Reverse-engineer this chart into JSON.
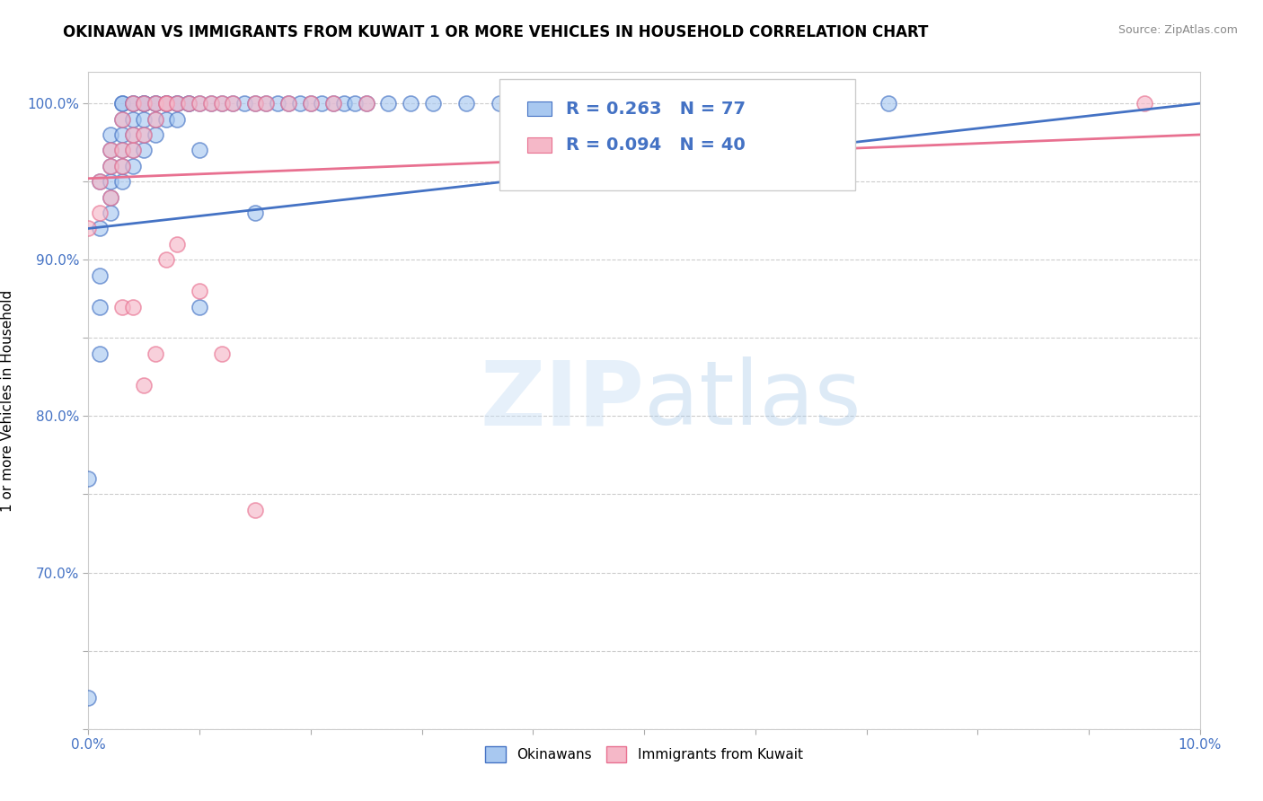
{
  "title": "OKINAWAN VS IMMIGRANTS FROM KUWAIT 1 OR MORE VEHICLES IN HOUSEHOLD CORRELATION CHART",
  "source": "Source: ZipAtlas.com",
  "ylabel": "1 or more Vehicles in Household",
  "xlim": [
    0.0,
    0.1
  ],
  "ylim": [
    0.6,
    1.02
  ],
  "R_blue": 0.263,
  "N_blue": 77,
  "R_pink": 0.094,
  "N_pink": 40,
  "blue_color": "#a8c8f0",
  "pink_color": "#f5b8c8",
  "blue_line_color": "#4472c4",
  "pink_line_color": "#e87090",
  "watermark_color": "#ddeeff",
  "blue_scatter_x": [
    0.0,
    0.0,
    0.001,
    0.001,
    0.001,
    0.001,
    0.001,
    0.002,
    0.002,
    0.002,
    0.002,
    0.002,
    0.002,
    0.003,
    0.003,
    0.003,
    0.003,
    0.003,
    0.003,
    0.003,
    0.004,
    0.004,
    0.004,
    0.004,
    0.004,
    0.004,
    0.005,
    0.005,
    0.005,
    0.005,
    0.005,
    0.005,
    0.006,
    0.006,
    0.006,
    0.006,
    0.007,
    0.007,
    0.007,
    0.007,
    0.008,
    0.008,
    0.008,
    0.009,
    0.009,
    0.01,
    0.01,
    0.01,
    0.011,
    0.012,
    0.013,
    0.014,
    0.015,
    0.015,
    0.016,
    0.017,
    0.018,
    0.019,
    0.02,
    0.021,
    0.022,
    0.023,
    0.024,
    0.025,
    0.027,
    0.029,
    0.031,
    0.034,
    0.037,
    0.04,
    0.043,
    0.047,
    0.05,
    0.055,
    0.06,
    0.066,
    0.072
  ],
  "blue_scatter_y": [
    0.62,
    0.76,
    0.84,
    0.87,
    0.89,
    0.92,
    0.95,
    0.93,
    0.94,
    0.95,
    0.96,
    0.97,
    0.98,
    0.95,
    0.96,
    0.97,
    0.98,
    0.99,
    1.0,
    1.0,
    0.96,
    0.97,
    0.98,
    0.99,
    1.0,
    1.0,
    0.97,
    0.98,
    0.99,
    1.0,
    1.0,
    1.0,
    0.98,
    0.99,
    1.0,
    1.0,
    0.99,
    1.0,
    1.0,
    1.0,
    0.99,
    1.0,
    1.0,
    1.0,
    1.0,
    0.87,
    0.97,
    1.0,
    1.0,
    1.0,
    1.0,
    1.0,
    0.93,
    1.0,
    1.0,
    1.0,
    1.0,
    1.0,
    1.0,
    1.0,
    1.0,
    1.0,
    1.0,
    1.0,
    1.0,
    1.0,
    1.0,
    1.0,
    1.0,
    1.0,
    1.0,
    1.0,
    1.0,
    1.0,
    1.0,
    1.0,
    1.0
  ],
  "pink_scatter_x": [
    0.0,
    0.001,
    0.001,
    0.002,
    0.002,
    0.002,
    0.003,
    0.003,
    0.003,
    0.004,
    0.004,
    0.004,
    0.005,
    0.005,
    0.006,
    0.006,
    0.007,
    0.007,
    0.008,
    0.009,
    0.01,
    0.011,
    0.012,
    0.013,
    0.015,
    0.016,
    0.018,
    0.02,
    0.022,
    0.025,
    0.003,
    0.004,
    0.005,
    0.006,
    0.007,
    0.008,
    0.01,
    0.012,
    0.015,
    0.095
  ],
  "pink_scatter_y": [
    0.92,
    0.93,
    0.95,
    0.94,
    0.96,
    0.97,
    0.96,
    0.97,
    0.99,
    0.97,
    0.98,
    1.0,
    0.98,
    1.0,
    0.99,
    1.0,
    1.0,
    1.0,
    1.0,
    1.0,
    1.0,
    1.0,
    1.0,
    1.0,
    1.0,
    1.0,
    1.0,
    1.0,
    1.0,
    1.0,
    0.87,
    0.87,
    0.82,
    0.84,
    0.9,
    0.91,
    0.88,
    0.84,
    0.74,
    1.0
  ],
  "blue_trendline_x": [
    0.0,
    0.1
  ],
  "blue_trendline_y": [
    0.92,
    1.0
  ],
  "pink_trendline_x": [
    0.0,
    0.1
  ],
  "pink_trendline_y": [
    0.952,
    0.98
  ],
  "xtick_positions": [
    0.0,
    0.01,
    0.02,
    0.03,
    0.04,
    0.05,
    0.06,
    0.07,
    0.08,
    0.09,
    0.1
  ],
  "ytick_positions": [
    0.6,
    0.65,
    0.7,
    0.75,
    0.8,
    0.85,
    0.9,
    0.95,
    1.0
  ],
  "ytick_shown": [
    0.7,
    0.8,
    0.9,
    1.0
  ],
  "ytick_labels": [
    "70.0%",
    "80.0%",
    "90.0%",
    "100.0%"
  ]
}
